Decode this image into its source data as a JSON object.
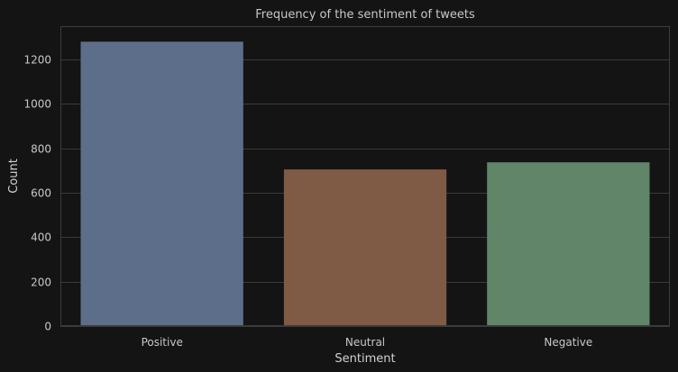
{
  "chart_data": {
    "type": "bar",
    "title": "Frequency of the sentiment of tweets",
    "xlabel": "Sentiment",
    "ylabel": "Count",
    "categories": [
      "Positive",
      "Neutral",
      "Negative"
    ],
    "values": [
      1280,
      705,
      737
    ],
    "ylim": [
      0,
      1350
    ],
    "yticks": [
      0,
      200,
      400,
      600,
      800,
      1000,
      1200
    ],
    "grid": true,
    "colors": {
      "background": "#141414",
      "grid": "#3a3a3a",
      "axes_frame": "#3c3c3c",
      "bars": [
        "#5d6e8b",
        "#7f5a45",
        "#618569"
      ]
    }
  }
}
